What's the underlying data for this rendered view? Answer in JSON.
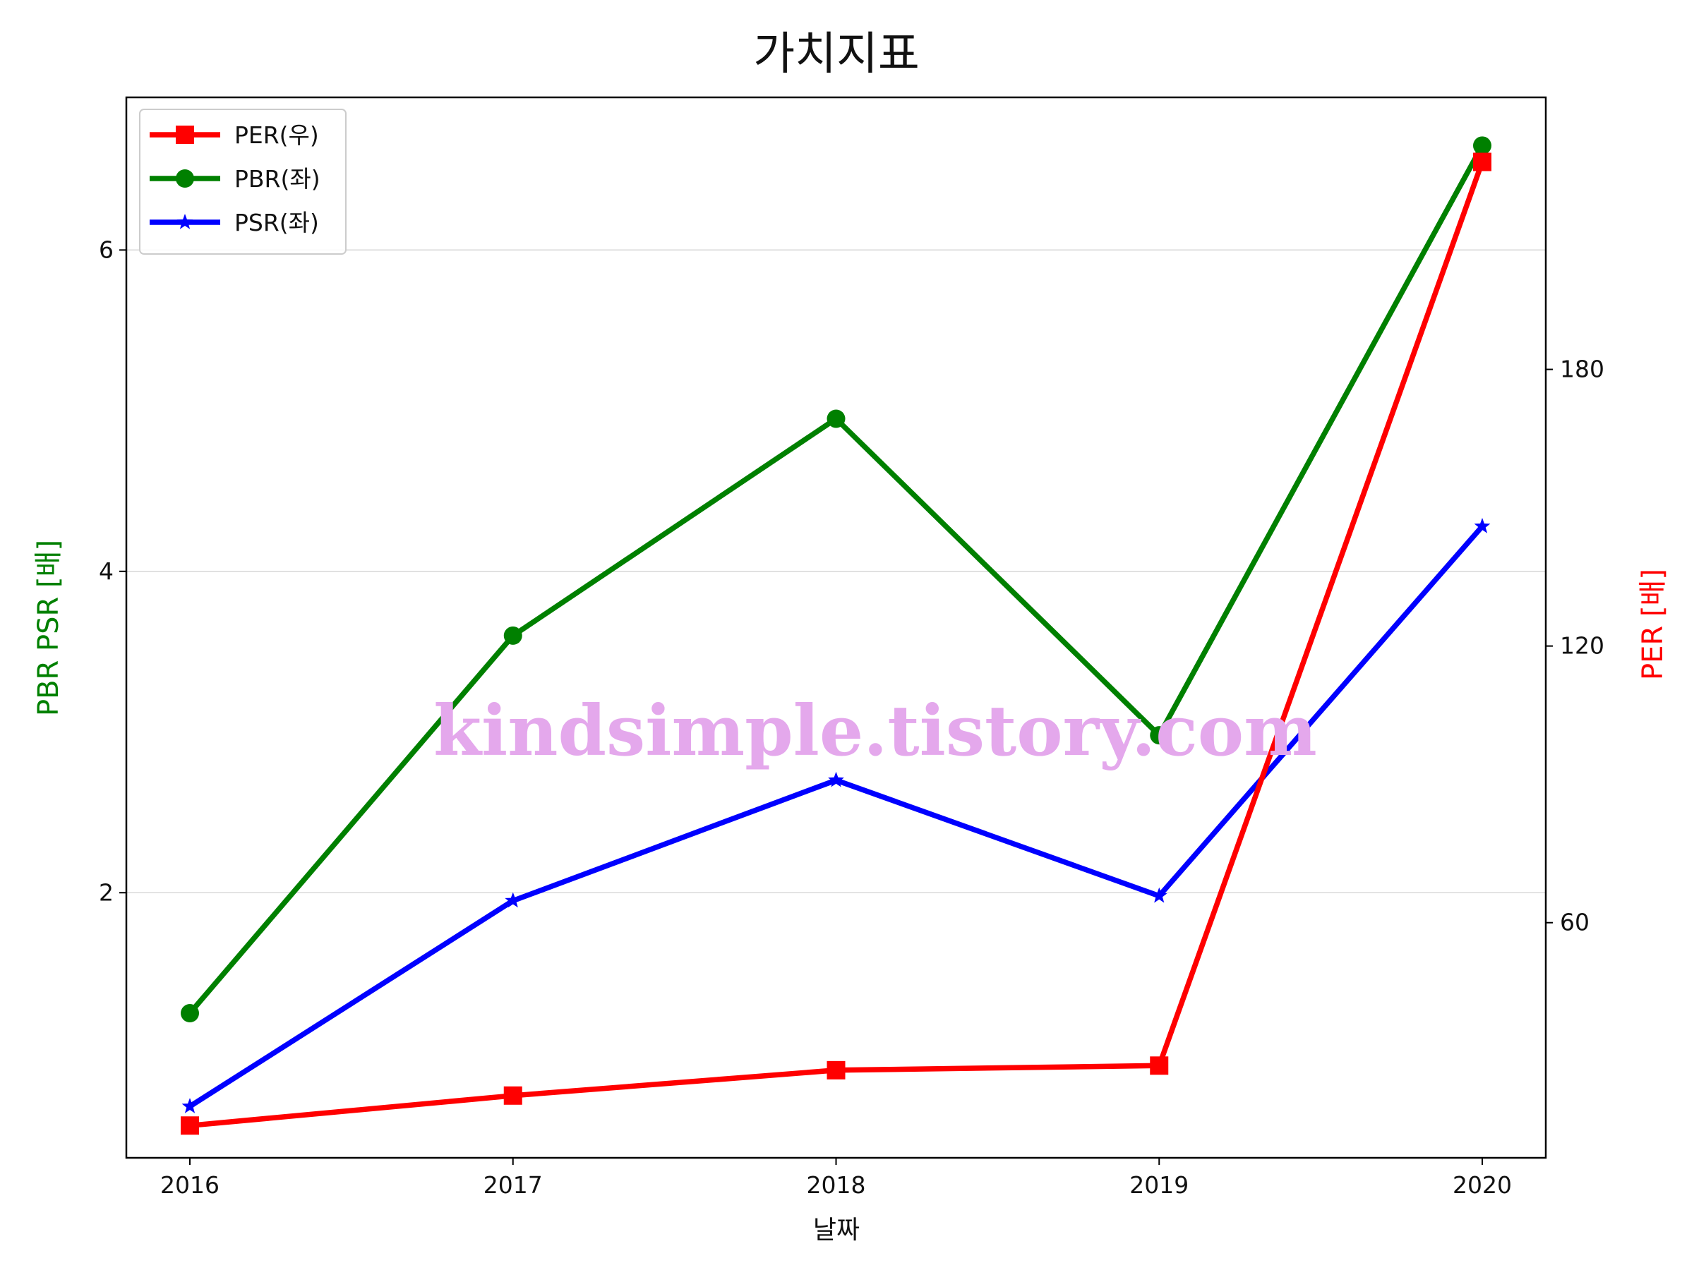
{
  "chart_data": {
    "type": "line",
    "title": "가치지표",
    "xlabel": "날짜",
    "ylabel_left": "PBR PSR [배]",
    "ylabel_right": "PER [배]",
    "categories": [
      "2016",
      "2017",
      "2018",
      "2019",
      "2020"
    ],
    "ylim_left": [
      0.35,
      6.95
    ],
    "ylim_right": [
      9,
      239
    ],
    "yticks_left": [
      2,
      4,
      6
    ],
    "yticks_right": [
      60,
      120,
      180
    ],
    "grid": "horizontal (left axis)",
    "legend_position": "top-left",
    "series": [
      {
        "name": "PER(우)",
        "axis": "right",
        "color": "#ff0000",
        "marker": "square",
        "values": [
          16,
          22.5,
          28,
          29,
          225
        ]
      },
      {
        "name": "PBR(좌)",
        "axis": "left",
        "color": "#008000",
        "marker": "circle",
        "values": [
          1.25,
          3.6,
          4.95,
          2.98,
          6.65
        ]
      },
      {
        "name": "PSR(좌)",
        "axis": "left",
        "color": "#0000ff",
        "marker": "star",
        "values": [
          0.67,
          1.95,
          2.7,
          1.98,
          4.28
        ]
      }
    ],
    "colors": {
      "left_label": "#008000",
      "right_label": "#ff0000",
      "watermark": "#e4a8ec"
    }
  },
  "watermark": "kindsimple.tistory.com"
}
